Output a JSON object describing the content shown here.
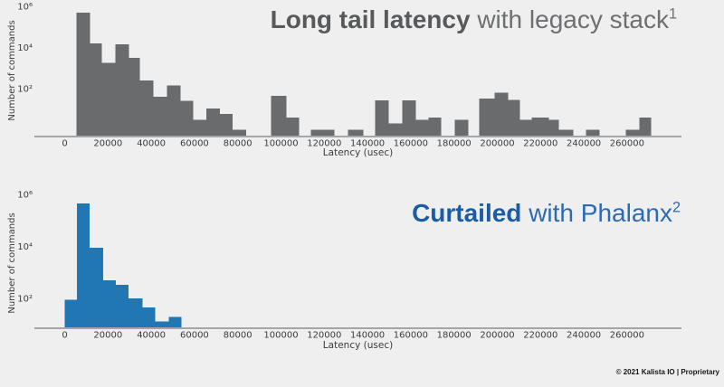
{
  "page": {
    "background": "#efefef",
    "axis_line_color": "#a4a6a8",
    "tick_text_color": "#3c3c3c",
    "footer_text": "© 2021 Kalista IO | Proprietary"
  },
  "chart_data": [
    {
      "type": "bar",
      "subtype": "histogram",
      "title_bold": "Long tail latency",
      "title_regular": " with legacy stack",
      "footnote_marker": "1",
      "title_bold_color": "#58595b",
      "title_regular_color": "#6e6f71",
      "bar_color": "#6a6b6d",
      "xlabel": "Latency (usec)",
      "ylabel": "Number of commands",
      "yscale": "log",
      "ylim_log10": [
        -0.33,
        6.35
      ],
      "xlim": [
        -14000,
        285000
      ],
      "grid": false,
      "legend": null,
      "yticks": [
        {
          "log10": 2,
          "label": "10²"
        },
        {
          "log10": 4,
          "label": "10⁴"
        },
        {
          "log10": 6,
          "label": "10⁶"
        }
      ],
      "xticks": [
        0,
        20000,
        40000,
        60000,
        80000,
        100000,
        120000,
        140000,
        160000,
        180000,
        200000,
        220000,
        240000,
        260000
      ],
      "bars": [
        {
          "x0": 5500,
          "x1": 11700,
          "count": 500000
        },
        {
          "x0": 11700,
          "x1": 17200,
          "count": 16000
        },
        {
          "x0": 17200,
          "x1": 23400,
          "count": 1800
        },
        {
          "x0": 23400,
          "x1": 29700,
          "count": 14000
        },
        {
          "x0": 29700,
          "x1": 34700,
          "count": 3200
        },
        {
          "x0": 34700,
          "x1": 41000,
          "count": 250
        },
        {
          "x0": 41000,
          "x1": 47300,
          "count": 40
        },
        {
          "x0": 47300,
          "x1": 53600,
          "count": 140
        },
        {
          "x0": 53600,
          "x1": 59400,
          "count": 25
        },
        {
          "x0": 59400,
          "x1": 65400,
          "count": 3
        },
        {
          "x0": 65400,
          "x1": 71700,
          "count": 11
        },
        {
          "x0": 71700,
          "x1": 77500,
          "count": 6
        },
        {
          "x0": 77500,
          "x1": 83800,
          "count": 1
        },
        {
          "x0": 95400,
          "x1": 102500,
          "count": 45
        },
        {
          "x0": 102500,
          "x1": 108400,
          "count": 4
        },
        {
          "x0": 113800,
          "x1": 124700,
          "count": 1
        },
        {
          "x0": 131000,
          "x1": 138100,
          "count": 1
        },
        {
          "x0": 143500,
          "x1": 149800,
          "count": 27
        },
        {
          "x0": 149800,
          "x1": 156100,
          "count": 2
        },
        {
          "x0": 156100,
          "x1": 162300,
          "count": 27
        },
        {
          "x0": 162300,
          "x1": 168200,
          "count": 3
        },
        {
          "x0": 168200,
          "x1": 174100,
          "count": 4
        },
        {
          "x0": 180300,
          "x1": 186600,
          "count": 3
        },
        {
          "x0": 191600,
          "x1": 198700,
          "count": 33
        },
        {
          "x0": 198700,
          "x1": 205000,
          "count": 63
        },
        {
          "x0": 205000,
          "x1": 210500,
          "count": 28
        },
        {
          "x0": 210500,
          "x1": 215900,
          "count": 3
        },
        {
          "x0": 215900,
          "x1": 223900,
          "count": 4
        },
        {
          "x0": 223900,
          "x1": 228500,
          "count": 3
        },
        {
          "x0": 228500,
          "x1": 235200,
          "count": 1
        },
        {
          "x0": 241000,
          "x1": 247300,
          "count": 1
        },
        {
          "x0": 259400,
          "x1": 265700,
          "count": 1
        },
        {
          "x0": 265700,
          "x1": 271100,
          "count": 4
        }
      ]
    },
    {
      "type": "bar",
      "subtype": "histogram",
      "title_bold": "Curtailed",
      "title_regular": " with Phalanx",
      "footnote_marker": "2",
      "title_bold_color": "#1a5da5",
      "title_regular_color": "#2c6bb2",
      "bar_color": "#2176b4",
      "xlabel": "Latency (usec)",
      "ylabel": "Number of commands",
      "yscale": "log",
      "ylim_log10": [
        0.85,
        6.3
      ],
      "xlim": [
        -14000,
        285000
      ],
      "grid": false,
      "legend": null,
      "yticks": [
        {
          "log10": 2,
          "label": "10²"
        },
        {
          "log10": 4,
          "label": "10⁴"
        },
        {
          "log10": 6,
          "label": "10⁶"
        }
      ],
      "xticks": [
        0,
        20000,
        40000,
        60000,
        80000,
        100000,
        120000,
        140000,
        160000,
        180000,
        200000,
        220000,
        240000,
        260000
      ],
      "bars": [
        {
          "x0": 0,
          "x1": 5600,
          "count": 90
        },
        {
          "x0": 5600,
          "x1": 11400,
          "count": 450000
        },
        {
          "x0": 11400,
          "x1": 17700,
          "count": 9000
        },
        {
          "x0": 17700,
          "x1": 23700,
          "count": 500
        },
        {
          "x0": 23700,
          "x1": 29600,
          "count": 330
        },
        {
          "x0": 29600,
          "x1": 36000,
          "count": 100
        },
        {
          "x0": 36000,
          "x1": 41800,
          "count": 45
        },
        {
          "x0": 41800,
          "x1": 48100,
          "count": 13
        },
        {
          "x0": 48100,
          "x1": 54000,
          "count": 19
        }
      ]
    }
  ]
}
